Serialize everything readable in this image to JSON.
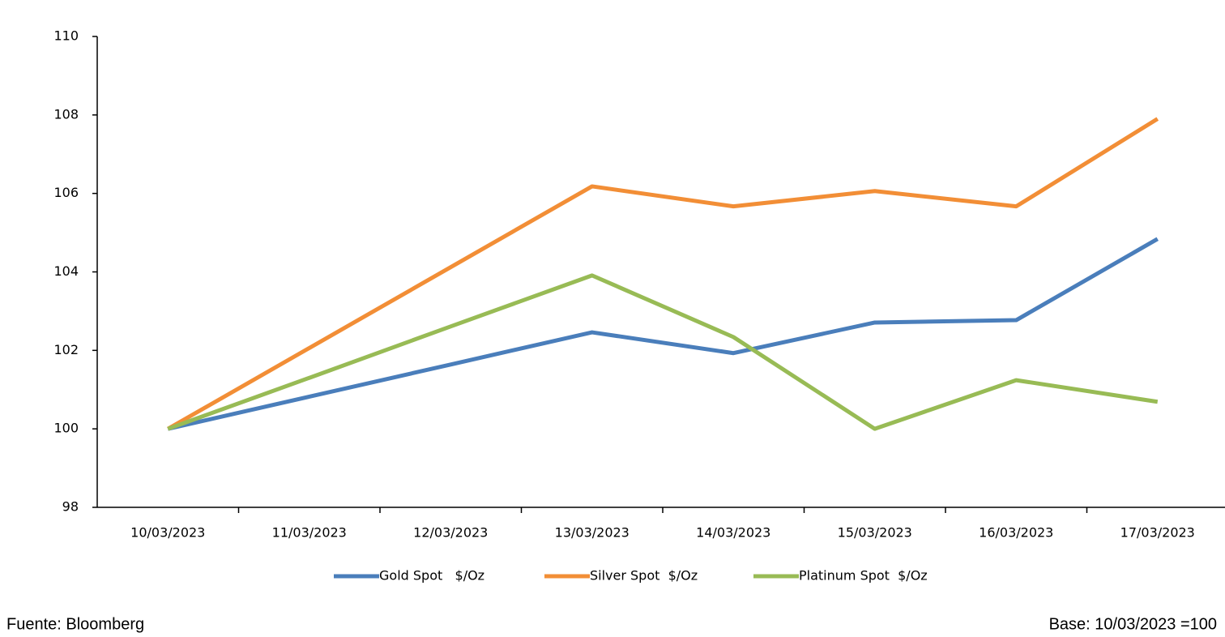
{
  "chart_data": {
    "type": "line",
    "categories": [
      "10/03/2023",
      "11/03/2023",
      "12/03/2023",
      "13/03/2023",
      "14/03/2023",
      "15/03/2023",
      "16/03/2023",
      "17/03/2023"
    ],
    "series": [
      {
        "name": "Gold Spot   $/Oz",
        "color": "#4a7ebb",
        "values": [
          100,
          100.82,
          101.64,
          102.46,
          101.93,
          102.71,
          102.77,
          104.84
        ]
      },
      {
        "name": "Silver Spot  $/Oz",
        "color": "#f28e36",
        "values": [
          100,
          102.06,
          104.12,
          106.18,
          105.67,
          106.06,
          105.67,
          107.9
        ]
      },
      {
        "name": "Platinum Spot  $/Oz",
        "color": "#98bb55",
        "values": [
          100,
          101.3,
          102.61,
          103.91,
          102.34,
          100,
          101.24,
          100.69
        ]
      }
    ],
    "ylim": [
      98,
      110
    ],
    "yticks": [
      98,
      100,
      102,
      104,
      106,
      108,
      110
    ],
    "source": "Fuente: Bloomberg",
    "note": "Base: 10/03/2023 =100"
  }
}
